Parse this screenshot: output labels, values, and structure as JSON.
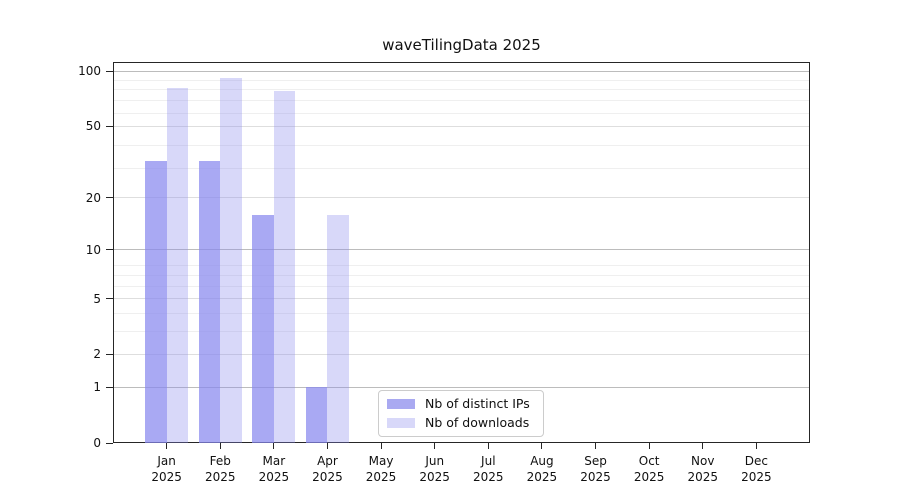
{
  "title": "waveTilingData 2025",
  "chart_data": {
    "type": "bar",
    "title": "waveTilingData 2025",
    "categories": [
      "Jan",
      "Feb",
      "Mar",
      "Apr",
      "May",
      "Jun",
      "Jul",
      "Aug",
      "Sep",
      "Oct",
      "Nov",
      "Dec"
    ],
    "category_year": "2025",
    "x_tick_labels": [
      "Jan\n2025",
      "Feb\n2025",
      "Mar\n2025",
      "Apr\n2025",
      "May\n2025",
      "Jun\n2025",
      "Jul\n2025",
      "Aug\n2025",
      "Sep\n2025",
      "Oct\n2025",
      "Nov\n2025",
      "Dec\n2025"
    ],
    "series": [
      {
        "name": "Nb of distinct IPs",
        "values": [
          32,
          32,
          16,
          1,
          0,
          0,
          0,
          0,
          0,
          0,
          0,
          0
        ],
        "color": "rgba(136,136,238,0.72)",
        "swatch_color": "#a9a9f1"
      },
      {
        "name": "Nb of downloads",
        "values": [
          81,
          92,
          78,
          16,
          0,
          0,
          0,
          0,
          0,
          0,
          0,
          0
        ],
        "color": "rgba(136,136,238,0.33)",
        "swatch_color": "#d8d8f9"
      }
    ],
    "y_ticks": [
      0,
      1,
      2,
      5,
      10,
      20,
      50,
      100
    ],
    "scale": "log1p",
    "ylim": [
      0,
      112
    ],
    "grid": "on",
    "legend_position": "lower-center",
    "gridline_values": {
      "major": [
        1,
        10,
        100
      ],
      "mid": [
        2,
        5,
        20,
        50
      ],
      "minor": [
        3,
        4,
        6,
        7,
        8,
        29,
        39,
        59,
        69,
        79,
        89
      ]
    },
    "colors": {
      "major_grid": "#bcbcbc",
      "mid_grid": "#dedede",
      "minor_grid": "#efefef",
      "spine": "#262626",
      "text": "#111111"
    }
  }
}
